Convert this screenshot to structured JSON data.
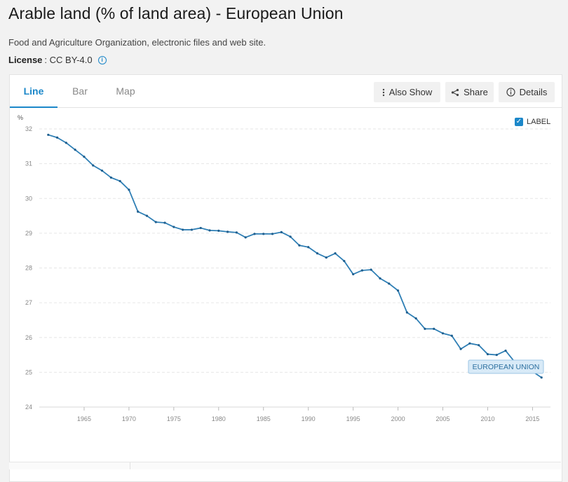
{
  "header": {
    "title": "Arable land (% of land area) - European Union",
    "source": "Food and Agriculture Organization, electronic files and web site.",
    "license_label": "License",
    "license_value": ": CC BY-4.0",
    "info_icon": "info-icon"
  },
  "tabs": [
    {
      "label": "Line",
      "active": true
    },
    {
      "label": "Bar",
      "active": false
    },
    {
      "label": "Map",
      "active": false
    }
  ],
  "toolbar": {
    "also_show": "Also Show",
    "share": "Share",
    "details": "Details"
  },
  "legend": {
    "label_toggle": "LABEL",
    "checked": true
  },
  "colors": {
    "accent": "#1b87c9",
    "line": "#2f7fb5",
    "grid": "#e6e6e6"
  },
  "chart_data": {
    "type": "line",
    "ylabel": "%",
    "ylim": [
      24,
      32
    ],
    "yticks": [
      24,
      25,
      26,
      27,
      28,
      29,
      30,
      31,
      32
    ],
    "xlim": [
      1960,
      2017
    ],
    "xticks": [
      1965,
      1970,
      1975,
      1980,
      1985,
      1990,
      1995,
      2000,
      2005,
      2010,
      2015
    ],
    "grid": true,
    "series": [
      {
        "name": "EUROPEAN UNION",
        "x": [
          1961,
          1962,
          1963,
          1964,
          1965,
          1966,
          1967,
          1968,
          1969,
          1970,
          1971,
          1972,
          1973,
          1974,
          1975,
          1976,
          1977,
          1978,
          1979,
          1980,
          1981,
          1982,
          1983,
          1984,
          1985,
          1986,
          1987,
          1988,
          1989,
          1990,
          1991,
          1992,
          1993,
          1994,
          1995,
          1996,
          1997,
          1998,
          1999,
          2000,
          2001,
          2002,
          2003,
          2004,
          2005,
          2006,
          2007,
          2008,
          2009,
          2010,
          2011,
          2012,
          2013,
          2014,
          2015,
          2016
        ],
        "values": [
          31.83,
          31.75,
          31.6,
          31.4,
          31.2,
          30.95,
          30.8,
          30.6,
          30.5,
          30.25,
          29.62,
          29.5,
          29.32,
          29.3,
          29.18,
          29.1,
          29.1,
          29.15,
          29.08,
          29.07,
          29.04,
          29.02,
          28.88,
          28.98,
          28.98,
          28.98,
          29.03,
          28.9,
          28.65,
          28.6,
          28.42,
          28.3,
          28.42,
          28.2,
          27.82,
          27.93,
          27.95,
          27.7,
          27.55,
          27.35,
          26.72,
          26.55,
          26.25,
          26.25,
          26.12,
          26.05,
          25.67,
          25.83,
          25.78,
          25.52,
          25.5,
          25.62,
          25.3,
          25.12,
          25.02,
          24.85
        ]
      }
    ]
  }
}
